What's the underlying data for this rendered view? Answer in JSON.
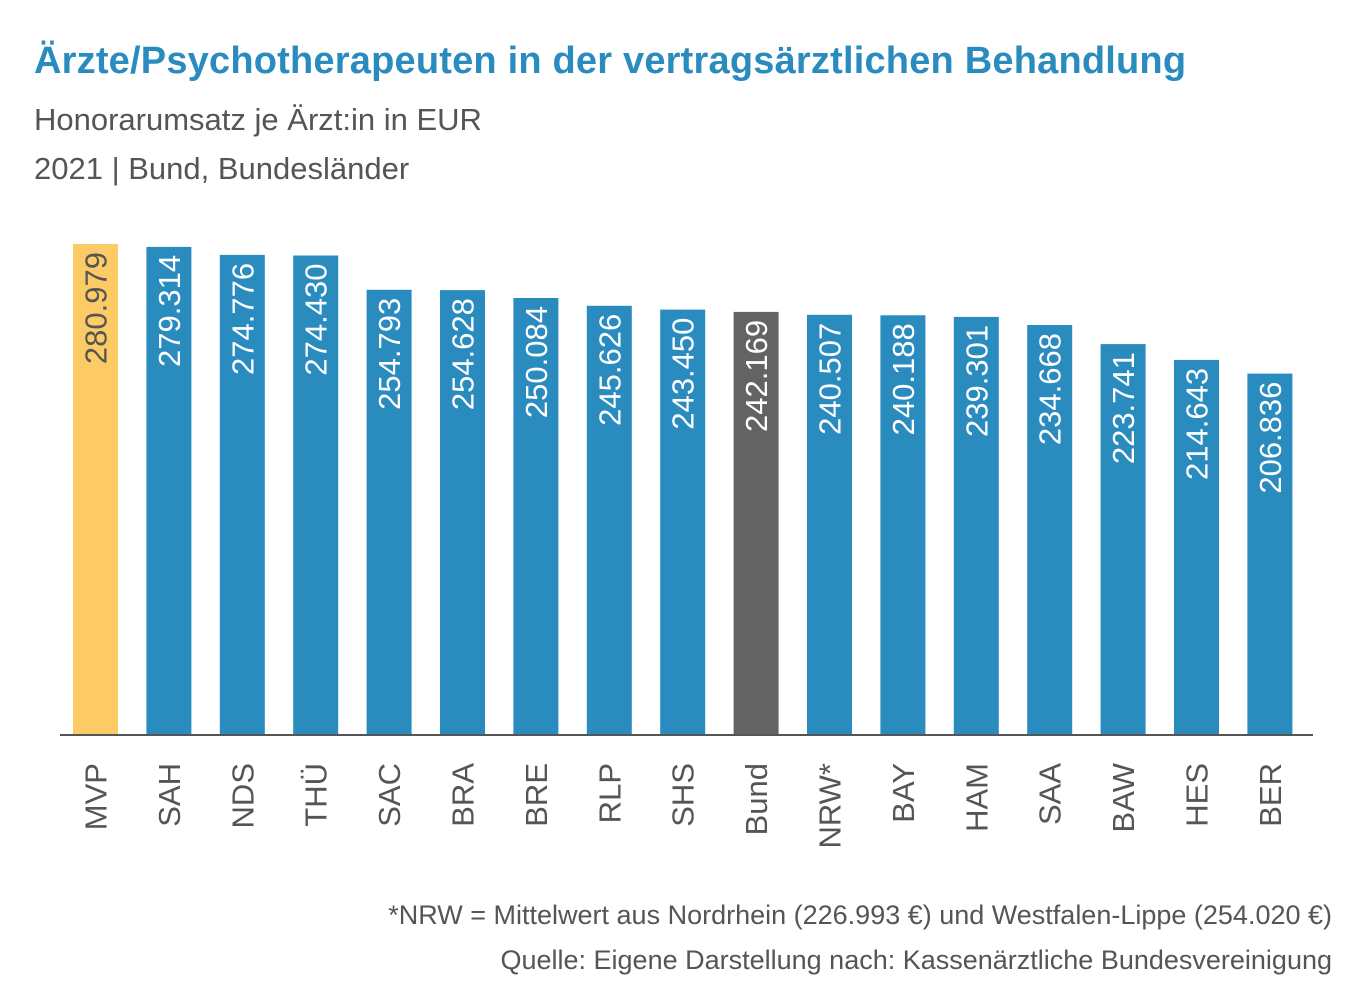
{
  "title": "Ärzte/Psychotherapeuten  in der vertragsärztlichen Behandlung",
  "subtitle_line1": "Honorarumsatz je Ärzt:in in EUR",
  "subtitle_line2": "2021 | Bund, Bundesländer",
  "footnote": "*NRW = Mittelwert aus Nordrhein (226.993 €) und Westfalen-Lippe (254.020 €)",
  "source": "Quelle: Eigene Darstellung nach: Kassenärztliche Bundesvereinigung",
  "colors": {
    "title": "#2a8bbf",
    "bar_default": "#2a8bbf",
    "bar_highlight": "#fccb66",
    "bar_reference": "#636363",
    "label_on_default": "#ffffff",
    "label_on_highlight": "#555555",
    "text": "#555555",
    "axis": "#555555"
  },
  "chart_data": {
    "type": "bar",
    "title": "Ärzte/Psychotherapeuten  in der vertragsärztlichen Behandlung",
    "xlabel": "",
    "ylabel": "",
    "ylim": [
      0,
      281000
    ],
    "grid": false,
    "categories": [
      "MVP",
      "SAH",
      "NDS",
      "THÜ",
      "SAC",
      "BRA",
      "BRE",
      "RLP",
      "SHS",
      "Bund",
      "NRW*",
      "BAY",
      "HAM",
      "SAA",
      "BAW",
      "HES",
      "BER"
    ],
    "values": [
      280979,
      279314,
      274776,
      274430,
      254793,
      254628,
      250084,
      245626,
      243450,
      242169,
      240507,
      240188,
      239301,
      234668,
      223741,
      214643,
      206836
    ],
    "value_labels": [
      "280.979",
      "279.314",
      "274.776",
      "274.430",
      "254.793",
      "254.628",
      "250.084",
      "245.626",
      "243.450",
      "242.169",
      "240.507",
      "240.188",
      "239.301",
      "234.668",
      "223.741",
      "214.643",
      "206.836"
    ],
    "bar_styles": [
      "highlight",
      "default",
      "default",
      "default",
      "default",
      "default",
      "default",
      "default",
      "default",
      "reference",
      "default",
      "default",
      "default",
      "default",
      "default",
      "default",
      "default"
    ]
  }
}
